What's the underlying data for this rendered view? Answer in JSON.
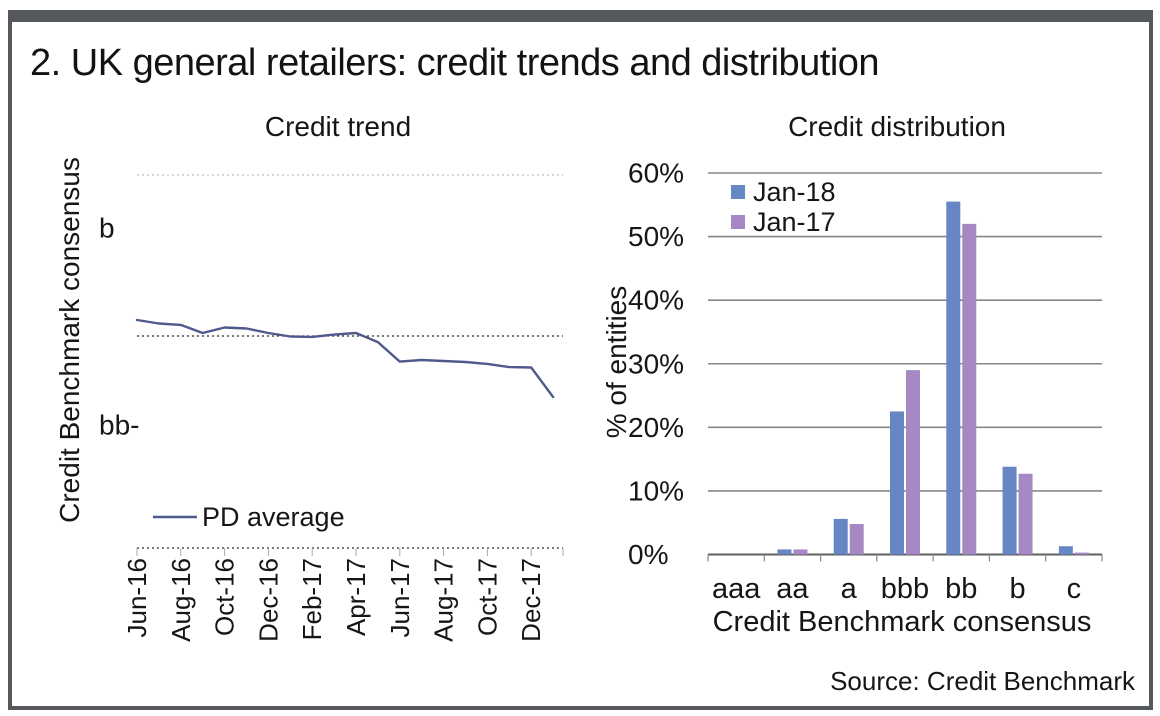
{
  "title": "2. UK general retailers: credit trends and distribution",
  "source_note": "Source: Credit Benchmark",
  "trend_chart": {
    "title": "Credit trend",
    "y_axis_title": "Credit Benchmark consensus",
    "y_tick_labels": [
      "b",
      "bb-"
    ],
    "x_tick_labels": [
      "Jun-16",
      "Aug-16",
      "Oct-16",
      "Dec-16",
      "Feb-17",
      "Apr-17",
      "Jun-17",
      "Aug-17",
      "Oct-17",
      "Dec-17"
    ],
    "legend_label": "PD average"
  },
  "dist_chart": {
    "title": "Credit distribution",
    "y_axis_title": "% of entities",
    "x_axis_title": "Credit Benchmark consensus",
    "y_tick_labels": [
      "0%",
      "10%",
      "20%",
      "30%",
      "40%",
      "50%",
      "60%"
    ],
    "x_tick_labels": [
      "aaa",
      "aa",
      "a",
      "bbb",
      "bb",
      "b",
      "c"
    ],
    "legend_labels": [
      "Jan-18",
      "Jan-17"
    ]
  },
  "colors": {
    "jan18_blue": "#6687c3",
    "jan17_purple": "#a689c4",
    "trend_line": "#4f5a8c",
    "gridline_gray": "#878787",
    "zero_axis_gray": "#5f5f5f",
    "dotted_dark": "#2a2a2a",
    "dotted_light": "#bdbdbd",
    "tick_gray": "#aaaaaa",
    "text": "#161616",
    "frame_border": "#55585c"
  },
  "chart_data": [
    {
      "type": "line",
      "title": "Credit trend",
      "ylabel": "Credit Benchmark consensus",
      "xlabel": "",
      "x": [
        "Jun-16",
        "Jul-16",
        "Aug-16",
        "Sep-16",
        "Oct-16",
        "Nov-16",
        "Dec-16",
        "Jan-17",
        "Feb-17",
        "Mar-17",
        "Apr-17",
        "May-17",
        "Jun-17",
        "Jul-17",
        "Aug-17",
        "Sep-17",
        "Oct-17",
        "Nov-17",
        "Dec-17",
        "Jan-18"
      ],
      "series": [
        {
          "name": "PD average",
          "values": [
            1.533,
            1.515,
            1.508,
            1.467,
            1.495,
            1.49,
            1.467,
            1.449,
            1.447,
            1.459,
            1.467,
            1.421,
            1.322,
            1.33,
            1.325,
            1.32,
            1.31,
            1.294,
            1.292,
            1.142
          ]
        }
      ],
      "y_scale": {
        "note": "categorical credit-rating axis, no numeric ticks shown; encoded as bb- = 1, b = 2",
        "yticks": [
          {
            "label": "b",
            "value": 2
          },
          {
            "label": "bb-",
            "value": 1
          }
        ],
        "dotted_gridline_values": [
          2.269,
          1.452,
          0.376
        ]
      },
      "grid": "horizontal dotted lines",
      "legend_position": "bottom-left"
    },
    {
      "type": "bar",
      "title": "Credit distribution",
      "categories": [
        "aaa",
        "aa",
        "a",
        "bbb",
        "bb",
        "b",
        "c"
      ],
      "series": [
        {
          "name": "Jan-18",
          "values": [
            0,
            0.8,
            5.6,
            22.5,
            55.5,
            13.8,
            1.3
          ]
        },
        {
          "name": "Jan-17",
          "values": [
            0,
            0.8,
            4.8,
            29,
            52,
            12.7,
            0.3
          ]
        }
      ],
      "xlabel": "Credit Benchmark consensus",
      "ylabel": "% of entities",
      "ylim": [
        0,
        60
      ],
      "ytick_step": 10,
      "unit": "%",
      "grid": "horizontal solid lines",
      "legend_position": "top-left"
    }
  ]
}
